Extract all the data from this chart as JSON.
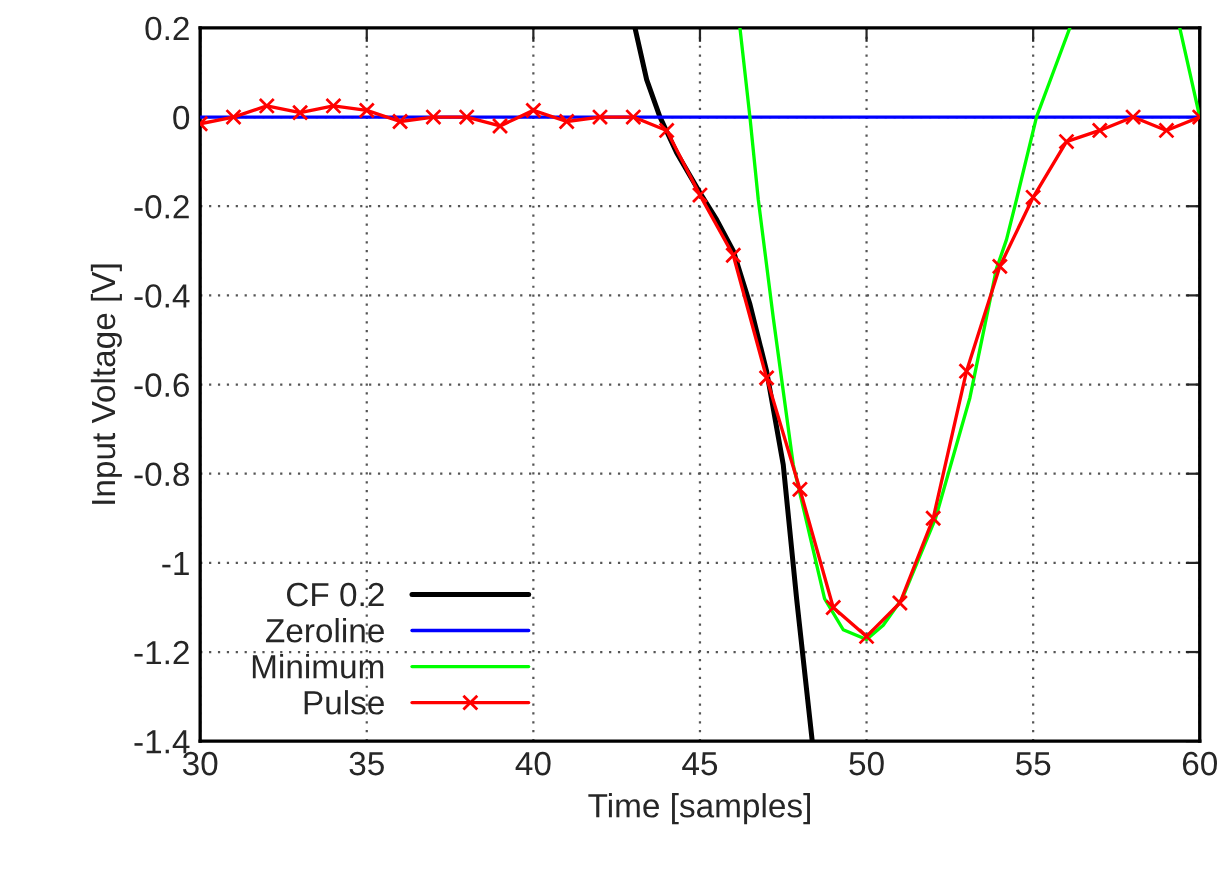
{
  "chart_data": {
    "type": "line",
    "xlabel": "Time [samples]",
    "ylabel": "Input Voltage [V]",
    "xlim": [
      30,
      60
    ],
    "ylim": [
      -1.4,
      0.2
    ],
    "xticks": [
      30,
      35,
      40,
      45,
      50,
      55,
      60
    ],
    "yticks": [
      -1.4,
      -1.2,
      -1,
      -0.8,
      -0.6,
      -0.4,
      -0.2,
      0,
      0.2
    ],
    "grid": true,
    "legend": "bottom left",
    "series": [
      {
        "name": "CF 0.2",
        "color": "#000000",
        "marker": "none",
        "x": [
          43.05,
          43.4,
          43.8,
          44.3,
          45,
          45.5,
          46,
          46.5,
          47,
          47.5,
          47.9,
          48.37
        ],
        "values": [
          0.2,
          0.084,
          0.0,
          -0.08,
          -0.17,
          -0.23,
          -0.3,
          -0.42,
          -0.57,
          -0.78,
          -1.08,
          -1.4
        ]
      },
      {
        "name": "Zeroline",
        "color": "#0000ff",
        "marker": "none",
        "x": [
          30,
          60
        ],
        "values": [
          0,
          0
        ]
      },
      {
        "name": "Minimum",
        "color": "#00ff00",
        "marker": "none",
        "x": [
          46.2,
          46.5,
          46.75,
          47.2,
          47.8,
          48.74,
          49.3,
          50,
          50.5,
          51.07,
          52.07,
          53.1,
          53.9,
          54.2,
          54.5,
          55.1,
          55.6,
          56.1,
          58,
          59.4,
          59.7,
          60
        ],
        "values": [
          0.2,
          0,
          -0.185,
          -0.45,
          -0.78,
          -1.08,
          -1.15,
          -1.172,
          -1.14,
          -1.08,
          -0.9,
          -0.63,
          -0.34,
          -0.275,
          -0.185,
          0,
          0.1,
          0.2,
          null,
          0.2,
          0.1,
          0.0
        ]
      },
      {
        "name": "Pulse",
        "color": "#ff0000",
        "marker": "cross",
        "x": [
          30,
          31,
          32,
          33,
          34,
          35,
          36,
          37,
          38,
          39,
          40,
          41,
          42,
          43,
          44,
          45,
          46,
          47,
          48,
          49,
          50,
          51,
          52,
          53,
          54,
          55,
          56,
          57,
          58,
          59,
          60
        ],
        "values": [
          -0.015,
          0,
          0.025,
          0.01,
          0.025,
          0.015,
          -0.01,
          0,
          0,
          -0.02,
          0.015,
          -0.01,
          0,
          0,
          -0.03,
          -0.175,
          -0.31,
          -0.585,
          -0.835,
          -1.1,
          -1.165,
          -1.09,
          -0.9,
          -0.57,
          -0.335,
          -0.18,
          -0.055,
          -0.03,
          0,
          -0.03,
          0
        ]
      }
    ]
  }
}
